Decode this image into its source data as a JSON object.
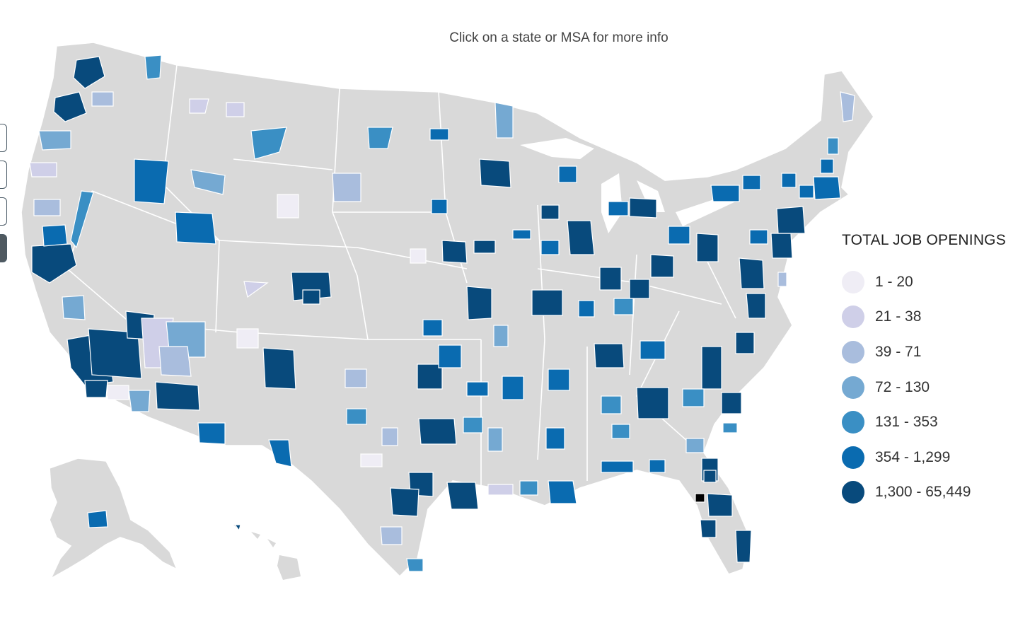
{
  "header": {
    "prompt": "Click on a state or MSA for more info"
  },
  "legend": {
    "title": "TOTAL JOB OPENINGS",
    "items": [
      {
        "label": "1 - 20",
        "color": "#efedf5"
      },
      {
        "label": "21 - 38",
        "color": "#cfcfe8"
      },
      {
        "label": "39 - 71",
        "color": "#a9bddd"
      },
      {
        "label": "72 - 130",
        "color": "#75a9d2"
      },
      {
        "label": "131 - 353",
        "color": "#3a8fc4"
      },
      {
        "label": "354 - 1,299",
        "color": "#0a6bb0"
      },
      {
        "label": "1,300 - 65,449",
        "color": "#084a7c"
      }
    ]
  },
  "colors": {
    "land": "#d9d9d9",
    "border": "#ffffff",
    "selected": "#000000"
  },
  "zoom_controls": [
    {
      "name": "zoom-control-1",
      "active": false
    },
    {
      "name": "zoom-control-2",
      "active": false
    },
    {
      "name": "zoom-control-3",
      "active": false
    },
    {
      "name": "zoom-control-4",
      "active": true
    }
  ]
}
